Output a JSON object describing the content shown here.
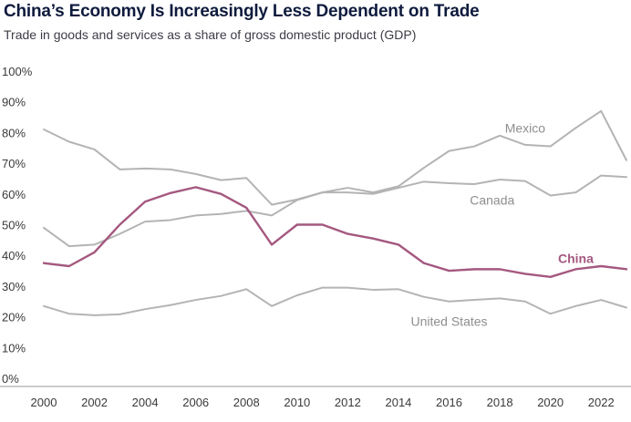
{
  "title": "China’s Economy Is Increasingly Less Dependent on Trade",
  "subtitle": "Trade in goods and services as a share of gross domestic product (GDP)",
  "colors": {
    "china": "#a4587f",
    "other": "#b4b4b4",
    "title": "#0f1b3d",
    "text": "#3a3a3a"
  },
  "chart_data": {
    "type": "line",
    "title": "China’s Economy Is Increasingly Less Dependent on Trade",
    "subtitle": "Trade in goods and services as a share of gross domestic product (GDP)",
    "xlabel": "",
    "ylabel": "",
    "x": [
      2000,
      2001,
      2002,
      2003,
      2004,
      2005,
      2006,
      2007,
      2008,
      2009,
      2010,
      2011,
      2012,
      2013,
      2014,
      2015,
      2016,
      2017,
      2018,
      2019,
      2020,
      2021,
      2022,
      2023
    ],
    "xlim": [
      2000,
      2023
    ],
    "ylim": [
      0,
      100
    ],
    "x_ticks": [
      2000,
      2002,
      2004,
      2006,
      2008,
      2010,
      2012,
      2014,
      2016,
      2018,
      2020,
      2022
    ],
    "x_tick_labels": [
      "2000",
      "2002",
      "2004",
      "2006",
      "2008",
      "2010",
      "2012",
      "2014",
      "2016",
      "2018",
      "2020",
      "2022"
    ],
    "y_ticks": [
      0,
      10,
      20,
      30,
      40,
      50,
      60,
      70,
      80,
      90,
      100
    ],
    "y_tick_labels": [
      "0%",
      "10%",
      "20%",
      "30%",
      "40%",
      "50%",
      "60%",
      "70%",
      "80%",
      "90%",
      "100%"
    ],
    "grid": false,
    "series": [
      {
        "name": "Mexico",
        "highlight": false,
        "values": [
          81,
          77,
          74.5,
          68,
          68.3,
          68,
          66.5,
          64.5,
          65.2,
          56.5,
          58.2,
          60.5,
          62,
          60.5,
          62.5,
          68.5,
          74,
          75.5,
          79,
          76,
          75.5,
          81.5,
          87,
          71
        ]
      },
      {
        "name": "Canada",
        "highlight": false,
        "values": [
          49,
          43,
          43.5,
          47,
          51,
          51.5,
          53,
          53.5,
          54.5,
          53,
          58,
          60.5,
          60.5,
          60,
          62,
          64,
          63.5,
          63.2,
          64.7,
          64.2,
          59.5,
          60.5,
          66,
          65.5
        ]
      },
      {
        "name": "China",
        "highlight": true,
        "values": [
          37.5,
          36.5,
          41,
          50,
          57.5,
          60.3,
          62.2,
          60,
          55.5,
          43.5,
          50,
          50,
          47,
          45.5,
          43.5,
          37.5,
          35,
          35.5,
          35.5,
          34,
          33,
          35.5,
          36.5,
          35.5
        ]
      },
      {
        "name": "United States",
        "highlight": false,
        "values": [
          23.5,
          21,
          20.5,
          20.8,
          22.5,
          23.8,
          25.5,
          26.8,
          29,
          23.5,
          27,
          29.5,
          29.5,
          28.8,
          29,
          26.5,
          25,
          25.5,
          26,
          25,
          21,
          23.5,
          25.5,
          23
        ]
      }
    ],
    "annotations": [
      {
        "series": "Mexico",
        "text": "Mexico",
        "at_x": 2019,
        "at_value": 81.5
      },
      {
        "series": "Canada",
        "text": "Canada",
        "at_x": 2017.7,
        "at_value": 58
      },
      {
        "series": "China",
        "text": "China",
        "at_x": 2021,
        "at_value": 39
      },
      {
        "series": "United States",
        "text": "United States",
        "at_x": 2016,
        "at_value": 18.5
      }
    ]
  }
}
